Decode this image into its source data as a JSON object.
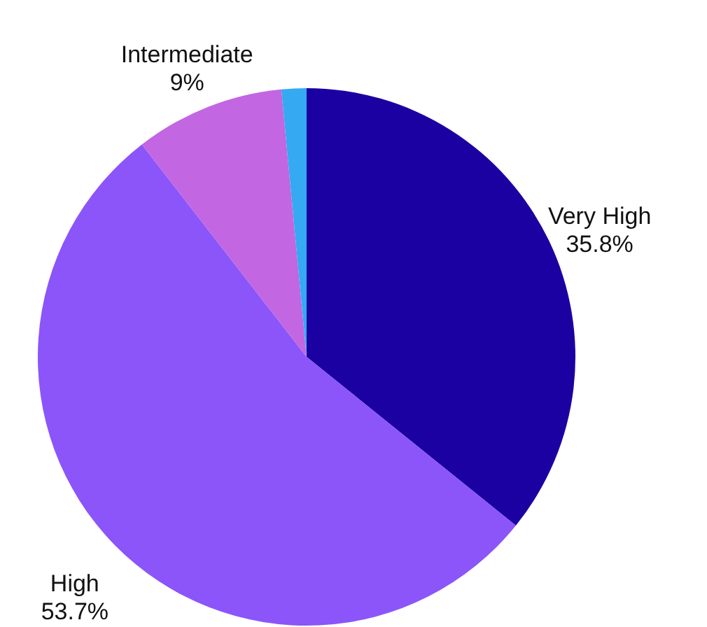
{
  "chart_data": {
    "type": "pie",
    "categories": [
      "Very High",
      "High",
      "Intermediate",
      null
    ],
    "values": [
      35.8,
      53.7,
      9,
      1.5
    ],
    "value_labels": [
      "35.8%",
      "53.7%",
      "9%",
      null
    ],
    "colors": [
      "#1b00a2",
      "#8b55fa",
      "#c266e2",
      "#35a9f2"
    ]
  }
}
